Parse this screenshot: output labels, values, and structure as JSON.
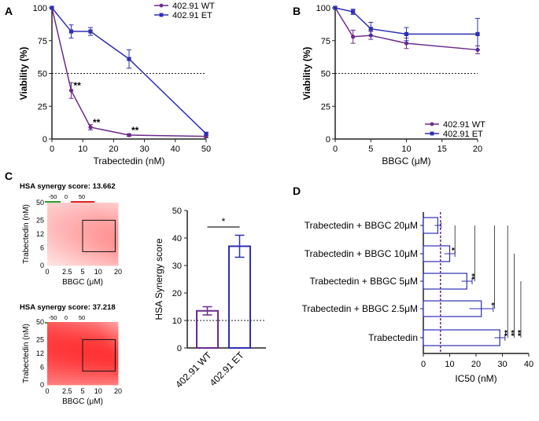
{
  "colors": {
    "wt": "#6a2c8a",
    "et": "#2f2fb3",
    "purple_dash": "#6a2c8a",
    "heat_hi": "#e31a1c",
    "heat_lo": "#ffffff",
    "green": "#2ca02c",
    "red": "#d62728"
  },
  "panel_labels": {
    "a": "A",
    "b": "B",
    "c": "C",
    "d": "D"
  },
  "chart_data": [
    {
      "id": "A",
      "type": "line",
      "xlabel": "Trabectedin (nM)",
      "ylabel": "Viability (%)",
      "xlim": [
        0,
        50
      ],
      "ylim": [
        0,
        100
      ],
      "xticks": [
        "0",
        "10",
        "20",
        "30",
        "40",
        "50"
      ],
      "yticks": [
        "0",
        "25",
        "50",
        "75",
        "100"
      ],
      "reference_line": 50,
      "series": [
        {
          "name": "402.91 WT",
          "x": [
            0,
            6.25,
            12.5,
            25,
            50
          ],
          "y": [
            100,
            37,
            9,
            3,
            2
          ],
          "err": [
            0,
            6,
            2,
            1,
            1
          ],
          "marker": "circle"
        },
        {
          "name": "402.91 ET",
          "x": [
            0,
            6.25,
            12.5,
            25,
            50
          ],
          "y": [
            100,
            82,
            82,
            61,
            4
          ],
          "err": [
            0,
            5,
            3,
            7,
            1
          ],
          "marker": "square"
        }
      ],
      "annotations": [
        {
          "x": 6.25,
          "y": 37,
          "label": "**"
        },
        {
          "x": 12.5,
          "y": 9,
          "label": "**"
        },
        {
          "x": 25,
          "y": 3,
          "label": "**"
        }
      ]
    },
    {
      "id": "B",
      "type": "line",
      "xlabel": "BBGC (μM)",
      "ylabel": "Viability (%)",
      "xlim": [
        0,
        20
      ],
      "ylim": [
        0,
        100
      ],
      "xticks": [
        "0",
        "5",
        "10",
        "15",
        "20"
      ],
      "yticks": [
        "0",
        "25",
        "50",
        "75",
        "100"
      ],
      "reference_line": 50,
      "series": [
        {
          "name": "402.91 WT",
          "x": [
            0,
            2.5,
            5,
            10,
            20
          ],
          "y": [
            100,
            78,
            79,
            73,
            68
          ],
          "err": [
            0,
            5,
            3,
            4,
            3
          ],
          "marker": "circle"
        },
        {
          "name": "402.91 ET",
          "x": [
            0,
            2.5,
            5,
            10,
            20
          ],
          "y": [
            100,
            97,
            84,
            80,
            80
          ],
          "err": [
            0,
            2,
            5,
            5,
            12
          ],
          "marker": "square"
        }
      ]
    },
    {
      "id": "C1",
      "type": "heatmap",
      "title": "HSA synergy score: 13.662",
      "scale_labels": [
        "-50",
        "0",
        "50"
      ],
      "xlabel": "BBGC (μM)",
      "ylabel": "Trabectedin (nM)",
      "xticks": [
        "0",
        "2.5",
        "5",
        "10",
        "20"
      ],
      "yticks": [
        "0",
        "6",
        "12",
        "25",
        "50"
      ]
    },
    {
      "id": "C2",
      "type": "heatmap",
      "title": "HSA synergy score: 37.218",
      "scale_labels": [
        "-50",
        "0",
        "50"
      ],
      "xlabel": "BBGC (μM)",
      "ylabel": "Trabectedin (nM)",
      "xticks": [
        "0",
        "2.5",
        "5",
        "10",
        "20"
      ],
      "yticks": [
        "0",
        "6",
        "12",
        "25",
        "50"
      ]
    },
    {
      "id": "C3",
      "type": "bar",
      "ylabel": "HSA Synergy score",
      "categories": [
        "402.91 WT",
        "402.91 ET"
      ],
      "values": [
        13.5,
        37
      ],
      "errors": [
        1.5,
        4
      ],
      "ylim": [
        0,
        50
      ],
      "yticks": [
        "0",
        "10",
        "20",
        "30",
        "40",
        "50"
      ],
      "reference_line": 10,
      "significance": "*"
    },
    {
      "id": "D",
      "type": "bar",
      "orientation": "horizontal",
      "xlabel": "IC50 (nM)",
      "categories": [
        "Trabectedin  + BBGC 20μM",
        "Trabectedin  + BBGC 10μM",
        "Trabectedin  + BBGC 5μM",
        "Trabectedin  + BBGC 2.5μM",
        "Trabectedin"
      ],
      "values": [
        5.5,
        10,
        16.5,
        22,
        29
      ],
      "errors": [
        1.2,
        2,
        2,
        4.5,
        2
      ],
      "xlim": [
        0,
        40
      ],
      "xticks": [
        "0",
        "10",
        "20",
        "30",
        "40"
      ],
      "reference_line": 6.5,
      "significance_labels": [
        "*",
        "**",
        "*",
        "**",
        "**",
        "**"
      ]
    }
  ]
}
